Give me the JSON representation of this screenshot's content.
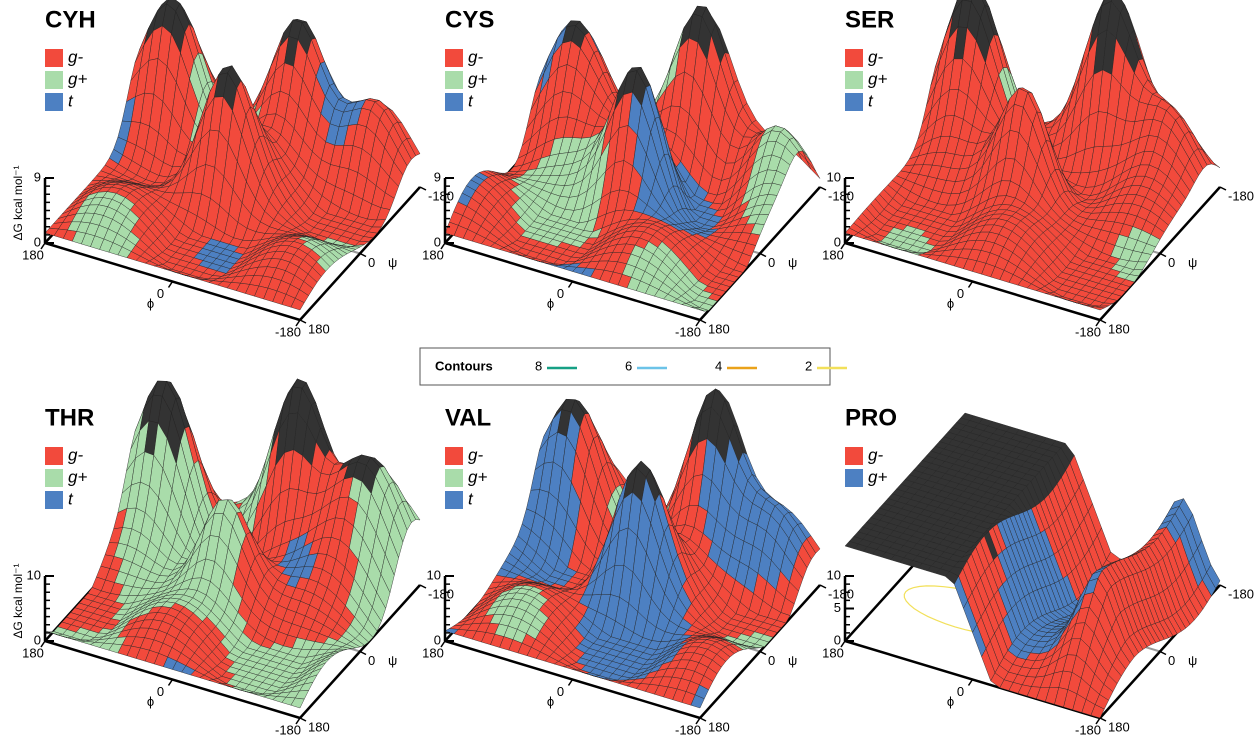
{
  "chart_data": [
    {
      "type": "surface",
      "title": "CYH",
      "series": [
        {
          "name": "g-",
          "color": "#f24a3c"
        },
        {
          "name": "g+",
          "color": "#a9dcaa"
        },
        {
          "name": "t",
          "color": "#4d80c2"
        }
      ],
      "zlabel": "ΔG kcal mol⁻¹",
      "zlim": [
        0,
        9
      ],
      "zticks": [
        0,
        9
      ],
      "xlabel": "ϕ",
      "xticks": [
        180,
        0,
        -180
      ],
      "ylabel": "ψ",
      "yticks": [
        180,
        0,
        -180
      ]
    },
    {
      "type": "surface",
      "title": "CYS",
      "series": [
        {
          "name": "g-",
          "color": "#f24a3c"
        },
        {
          "name": "g+",
          "color": "#a9dcaa"
        },
        {
          "name": "t",
          "color": "#4d80c2"
        }
      ],
      "zlim": [
        0,
        9
      ],
      "zticks": [
        0,
        9
      ],
      "xlabel": "ϕ",
      "xticks": [
        180,
        0,
        -180
      ],
      "ylabel": "ψ",
      "yticks": [
        180,
        0,
        -180
      ]
    },
    {
      "type": "surface",
      "title": "SER",
      "series": [
        {
          "name": "g-",
          "color": "#f24a3c"
        },
        {
          "name": "g+",
          "color": "#a9dcaa"
        },
        {
          "name": "t",
          "color": "#4d80c2"
        }
      ],
      "zlim": [
        0,
        10
      ],
      "zticks": [
        0,
        10
      ],
      "xlabel": "ϕ",
      "xticks": [
        180,
        0,
        -180
      ],
      "ylabel": "ψ",
      "yticks": [
        180,
        0,
        -180
      ]
    },
    {
      "type": "surface",
      "title": "THR",
      "series": [
        {
          "name": "g-",
          "color": "#f24a3c"
        },
        {
          "name": "g+",
          "color": "#a9dcaa"
        },
        {
          "name": "t",
          "color": "#4d80c2"
        }
      ],
      "zlabel": "ΔG kcal mol⁻¹",
      "zlim": [
        0,
        10
      ],
      "zticks": [
        0,
        10
      ],
      "xlabel": "ϕ",
      "xticks": [
        180,
        0,
        -180
      ],
      "ylabel": "ψ",
      "yticks": [
        180,
        0,
        -180
      ]
    },
    {
      "type": "surface",
      "title": "VAL",
      "series": [
        {
          "name": "g-",
          "color": "#f24a3c"
        },
        {
          "name": "g+",
          "color": "#a9dcaa"
        },
        {
          "name": "t",
          "color": "#4d80c2"
        }
      ],
      "zlim": [
        0,
        10
      ],
      "zticks": [
        0,
        10
      ],
      "xlabel": "ϕ",
      "xticks": [
        180,
        0,
        -180
      ],
      "ylabel": "ψ",
      "yticks": [
        180,
        0,
        -180
      ]
    },
    {
      "type": "surface",
      "title": "PRO",
      "series": [
        {
          "name": "g-",
          "color": "#f24a3c"
        },
        {
          "name": "g+",
          "color": "#4d80c2"
        }
      ],
      "zlim": [
        0,
        10
      ],
      "zticks": [
        0,
        5,
        10
      ],
      "xlabel": "ϕ",
      "xticks": [
        180,
        0,
        -180
      ],
      "ylabel": "ψ",
      "yticks": [
        180,
        0,
        -180
      ]
    }
  ],
  "contours": {
    "title": "Contours",
    "levels": [
      8,
      6,
      4,
      2
    ],
    "colors": [
      "#16a085",
      "#6cc3e8",
      "#eaa21a",
      "#f2e05a"
    ]
  }
}
